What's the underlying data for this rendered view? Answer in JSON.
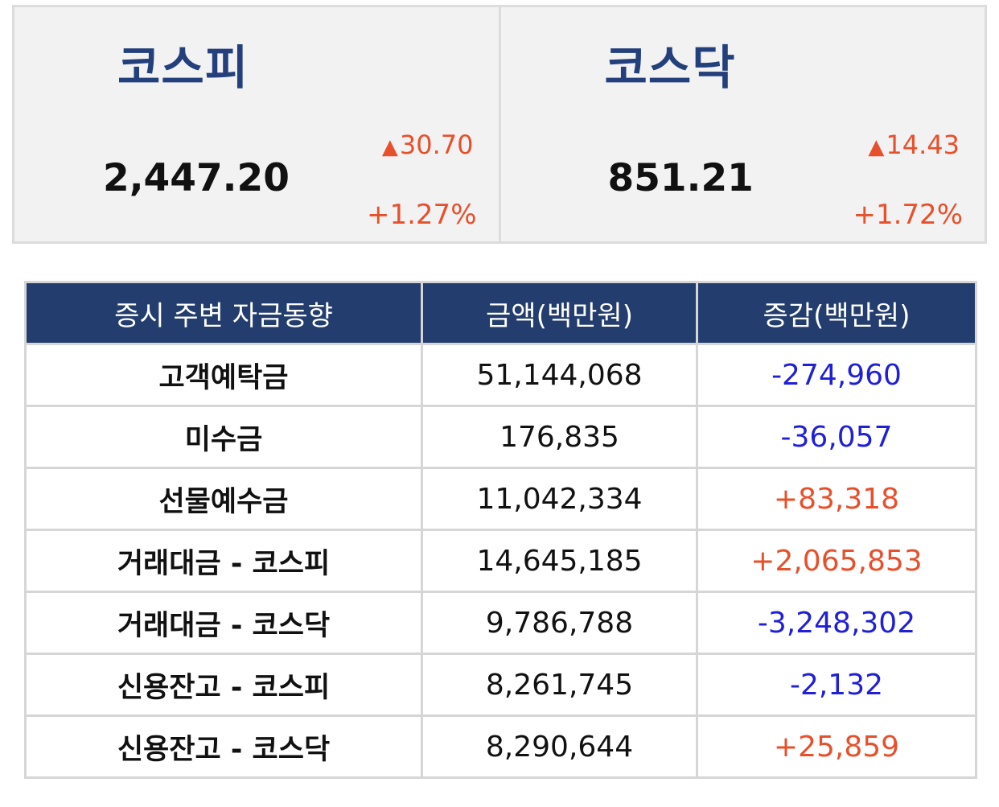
{
  "indices": [
    {
      "name": "코스피",
      "value": "2,447.20",
      "change_arrow": "▲",
      "change": "30.70",
      "rate": "+1.27%"
    },
    {
      "name": "코스닥",
      "value": "851.21",
      "change_arrow": "▲",
      "change": "14.43",
      "rate": "+1.72%"
    }
  ],
  "table": {
    "headers": [
      "증시 주변 자금동향",
      "금액(백만원)",
      "증감(백만원)"
    ],
    "rows": [
      {
        "item": "고객예탁금",
        "amount": "51,144,068",
        "delta": "-274,960",
        "direction": "down"
      },
      {
        "item": "미수금",
        "amount": "176,835",
        "delta": "-36,057",
        "direction": "down"
      },
      {
        "item": "선물예수금",
        "amount": "11,042,334",
        "delta": "+83,318",
        "direction": "up"
      },
      {
        "item": "거래대금 - 코스피",
        "amount": "14,645,185",
        "delta": "+2,065,853",
        "direction": "up"
      },
      {
        "item": "거래대금 - 코스닥",
        "amount": "9,786,788",
        "delta": "-3,248,302",
        "direction": "down"
      },
      {
        "item": "신용잔고 - 코스피",
        "amount": "8,261,745",
        "delta": "-2,132",
        "direction": "down"
      },
      {
        "item": "신용잔고 - 코스닥",
        "amount": "8,290,644",
        "delta": "+25,859",
        "direction": "up"
      }
    ]
  },
  "colors": {
    "brand_navy": "#23407c",
    "header_bg": "#233d6e",
    "up": "#e8502b",
    "down": "#1f1fd6"
  }
}
